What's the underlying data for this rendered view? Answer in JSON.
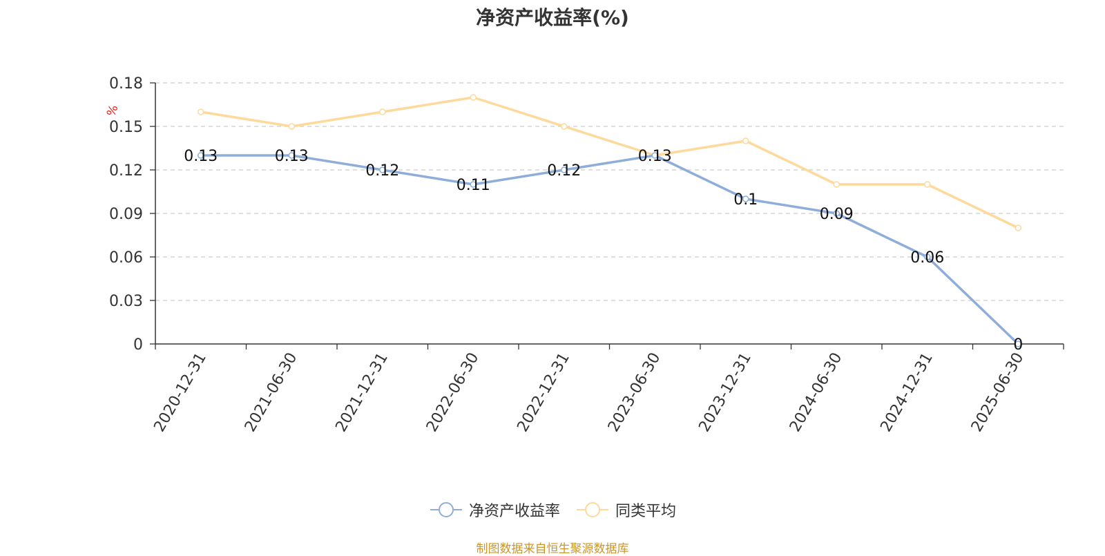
{
  "chart_data": {
    "type": "line",
    "title": "净资产收益率(%)",
    "ylabel": "%",
    "categories": [
      "2020-12-31",
      "2021-06-30",
      "2021-12-31",
      "2022-06-30",
      "2022-12-31",
      "2023-06-30",
      "2023-12-31",
      "2024-06-30",
      "2024-12-31",
      "2025-06-30"
    ],
    "ylim": [
      0,
      0.18
    ],
    "yticks": [
      0,
      0.03,
      0.06,
      0.09,
      0.12,
      0.15,
      0.18
    ],
    "ytick_labels": [
      "0",
      "0.03",
      "0.06",
      "0.09",
      "0.12",
      "0.15",
      "0.18"
    ],
    "grid": true,
    "legend_position": "bottom",
    "series": [
      {
        "name": "净资产收益率",
        "color": "#8eaed9",
        "values": [
          0.13,
          0.13,
          0.12,
          0.11,
          0.12,
          0.13,
          0.1,
          0.09,
          0.06,
          0.0
        ],
        "labels": [
          "0.13",
          "0.13",
          "0.12",
          "0.11",
          "0.12",
          "0.13",
          "0.1",
          "0.09",
          "0.06",
          "0"
        ]
      },
      {
        "name": "同类平均",
        "color": "#fdd99b",
        "values": [
          0.16,
          0.15,
          0.16,
          0.17,
          0.15,
          0.13,
          0.14,
          0.11,
          0.11,
          0.08
        ]
      }
    ],
    "source_note": "制图数据来自恒生聚源数据库"
  }
}
